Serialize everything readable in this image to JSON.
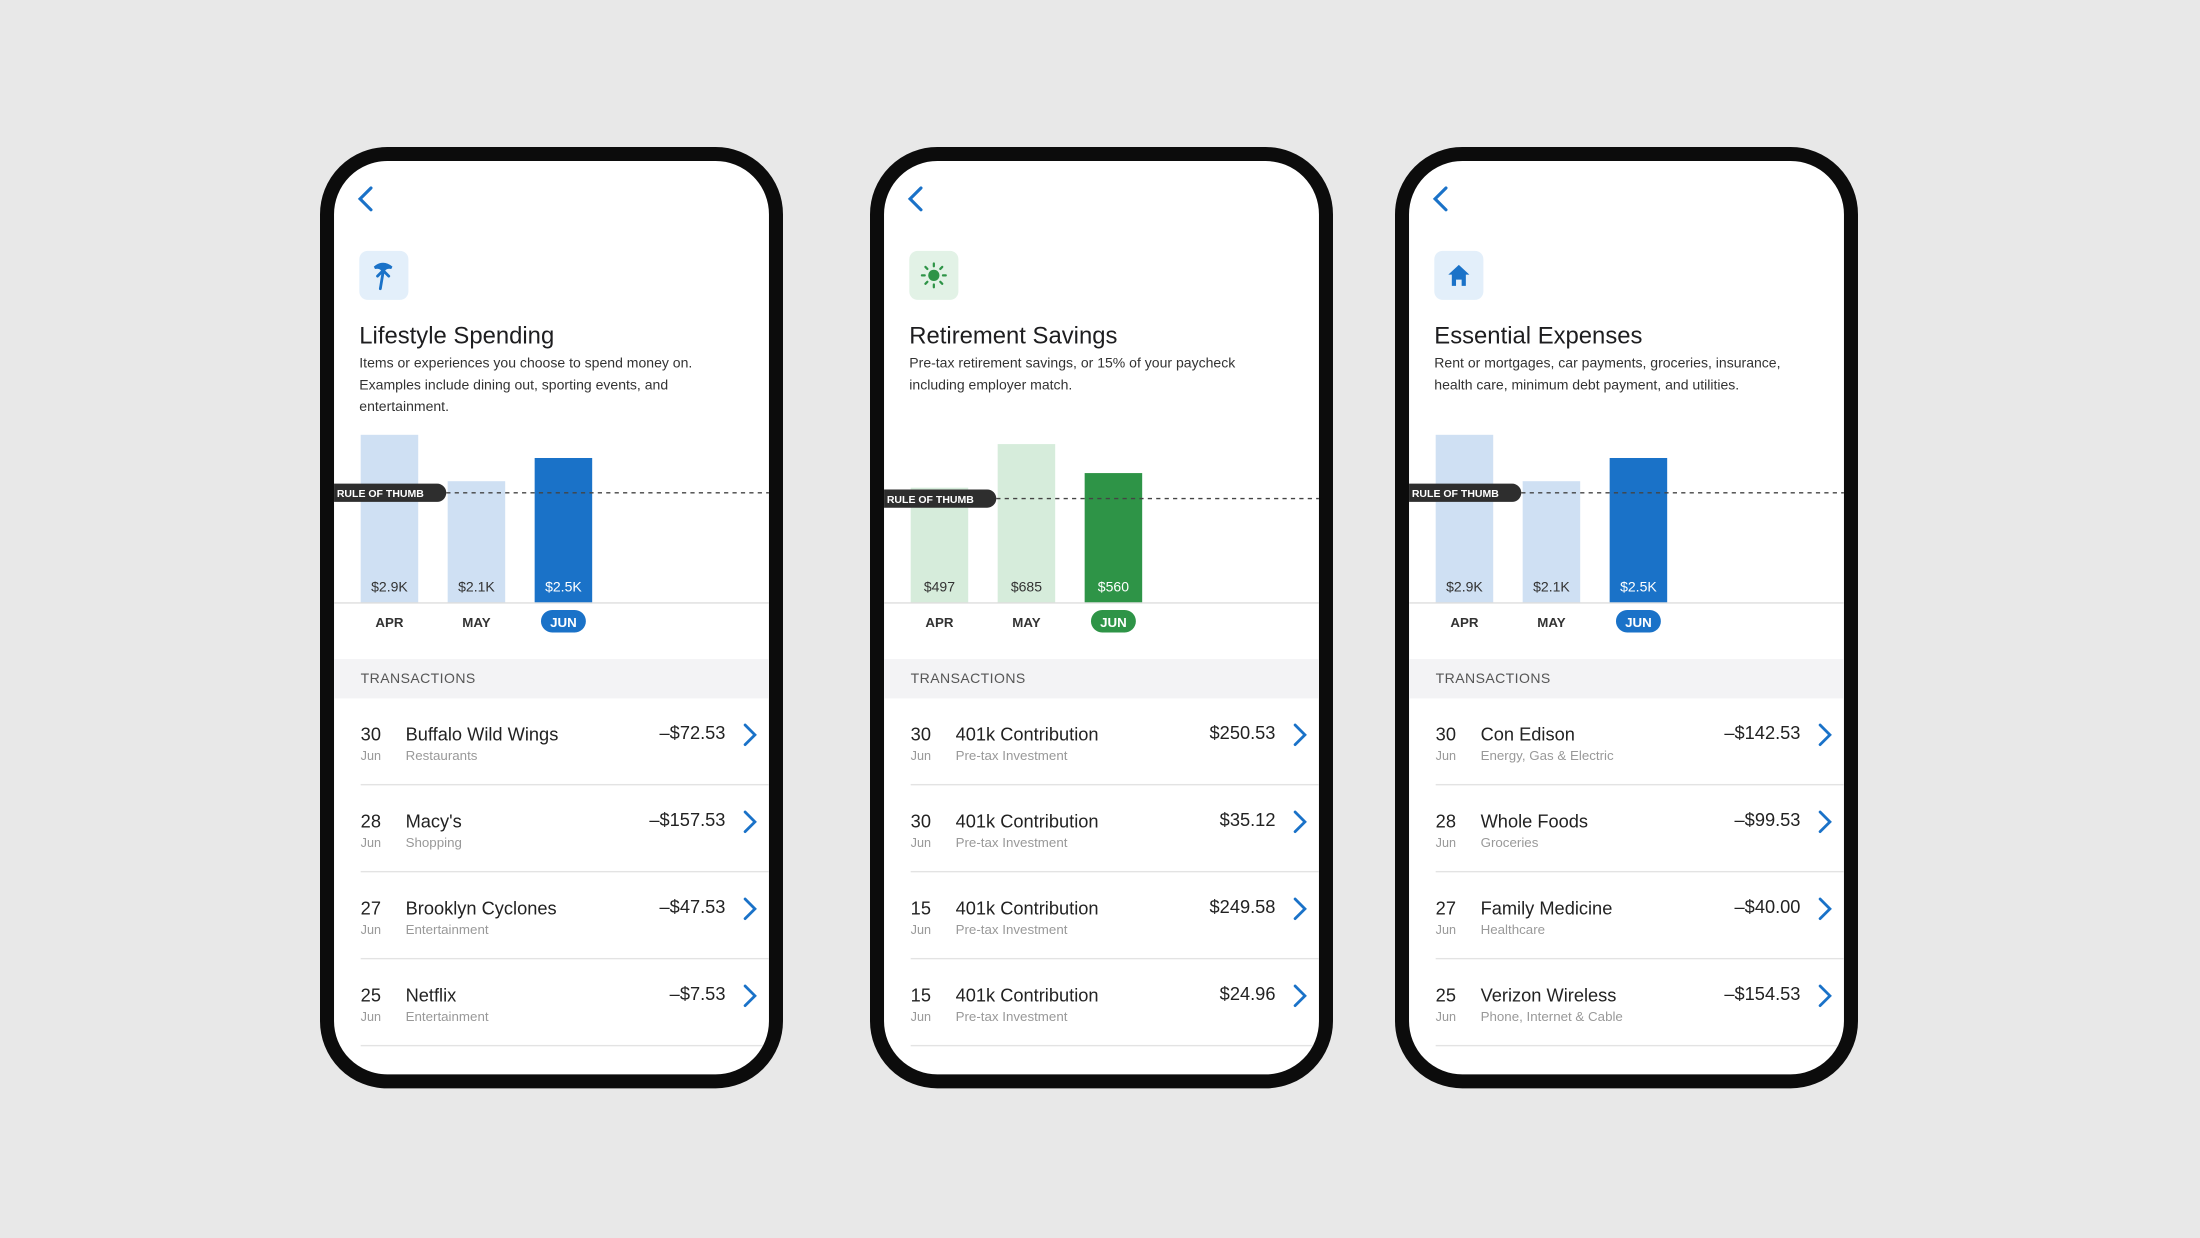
{
  "phones": [
    {
      "title": "Lifestyle Spending",
      "description": "Items or experiences you choose to spend money on. Examples include dining out, sporting events, and entertainment.",
      "chart_data": {
        "type": "bar",
        "categories": [
          "APR",
          "MAY",
          "JUN"
        ],
        "values": [
          2900,
          2100,
          2500
        ],
        "value_labels": [
          "$2.9K",
          "$2.1K",
          "$2.5K"
        ],
        "color": "#cfe0f3",
        "highlight_color": "#1a72c8",
        "highlight": 2,
        "ylim": [
          0,
          3000
        ],
        "rule_of_thumb": {
          "label": "RULE OF THUMB",
          "value": 1900
        }
      },
      "transactions_header": "TRANSACTIONS",
      "transactions": [
        {
          "day": "30",
          "month": "Jun",
          "name": "Buffalo Wild Wings",
          "category": "Restaurants",
          "amount": "–$72.53"
        },
        {
          "day": "28",
          "month": "Jun",
          "name": "Macy's",
          "category": "Shopping",
          "amount": "–$157.53"
        },
        {
          "day": "27",
          "month": "Jun",
          "name": "Brooklyn Cyclones",
          "category": "Entertainment",
          "amount": "–$47.53"
        },
        {
          "day": "25",
          "month": "Jun",
          "name": "Netflix",
          "category": "Entertainment",
          "amount": "–$7.53"
        }
      ]
    },
    {
      "title": "Retirement Savings",
      "description": "Pre-tax retirement savings, or 15% of your paycheck including employer match.",
      "chart_data": {
        "type": "bar",
        "categories": [
          "APR",
          "MAY",
          "JUN"
        ],
        "values": [
          497,
          685,
          560
        ],
        "value_labels": [
          "$497",
          "$685",
          "$560"
        ],
        "color": "#d6ecdb",
        "highlight_color": "#2e9447",
        "highlight": 2,
        "ylim": [
          0,
          750
        ],
        "rule_of_thumb": {
          "label": "RULE OF THUMB",
          "value": 450
        }
      },
      "transactions_header": "TRANSACTIONS",
      "transactions": [
        {
          "day": "30",
          "month": "Jun",
          "name": "401k Contribution",
          "category": "Pre-tax Investment",
          "amount": "$250.53"
        },
        {
          "day": "30",
          "month": "Jun",
          "name": "401k Contribution",
          "category": "Pre-tax Investment",
          "amount": "$35.12"
        },
        {
          "day": "15",
          "month": "Jun",
          "name": "401k Contribution",
          "category": "Pre-tax Investment",
          "amount": "$249.58"
        },
        {
          "day": "15",
          "month": "Jun",
          "name": "401k Contribution",
          "category": "Pre-tax Investment",
          "amount": "$24.96"
        }
      ]
    },
    {
      "title": "Essential Expenses",
      "description": "Rent or mortgages, car payments, groceries, insurance, health care, minimum debt payment, and utilities.",
      "chart_data": {
        "type": "bar",
        "categories": [
          "APR",
          "MAY",
          "JUN"
        ],
        "values": [
          2900,
          2100,
          2500
        ],
        "value_labels": [
          "$2.9K",
          "$2.1K",
          "$2.5K"
        ],
        "color": "#cfe0f3",
        "highlight_color": "#1a72c8",
        "highlight": 2,
        "ylim": [
          0,
          3000
        ],
        "rule_of_thumb": {
          "label": "RULE OF THUMB",
          "value": 1900
        }
      },
      "transactions_header": "TRANSACTIONS",
      "transactions": [
        {
          "day": "30",
          "month": "Jun",
          "name": "Con Edison",
          "category": "Energy, Gas & Electric",
          "amount": "–$142.53"
        },
        {
          "day": "28",
          "month": "Jun",
          "name": "Whole Foods",
          "category": "Groceries",
          "amount": "–$99.53"
        },
        {
          "day": "27",
          "month": "Jun",
          "name": "Family Medicine",
          "category": "Healthcare",
          "amount": "–$40.00"
        },
        {
          "day": "25",
          "month": "Jun",
          "name": "Verizon Wireless",
          "category": "Phone, Internet & Cable",
          "amount": "–$154.53"
        }
      ]
    }
  ]
}
